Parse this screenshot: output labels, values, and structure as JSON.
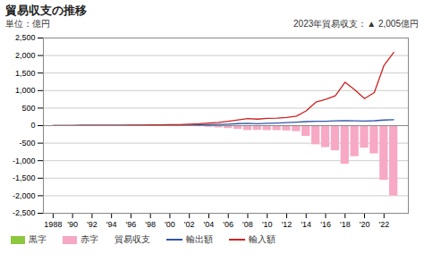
{
  "chart_data": {
    "type": "bar",
    "title": "貿易収支の推移",
    "ylabel": "単位：億円",
    "annotation": "2023年貿易収支：▲ 2,005億円",
    "x": [
      1988,
      1989,
      1990,
      1991,
      1992,
      1993,
      1994,
      1995,
      1996,
      1997,
      1998,
      1999,
      2000,
      2001,
      2002,
      2003,
      2004,
      2005,
      2006,
      2007,
      2008,
      2009,
      2010,
      2011,
      2012,
      2013,
      2014,
      2015,
      2016,
      2017,
      2018,
      2019,
      2020,
      2021,
      2022,
      2023
    ],
    "series": [
      {
        "name": "貿易収支",
        "type": "bar",
        "values": [
          0,
          0,
          0,
          0,
          0,
          -1,
          -2,
          -3,
          -3,
          -5,
          -6,
          -8,
          -11,
          -15,
          -21,
          -30,
          -45,
          -60,
          -81,
          -105,
          -137,
          -133,
          -140,
          -140,
          -150,
          -170,
          -305,
          -545,
          -625,
          -715,
          -1100,
          -885,
          -640,
          -805,
          -1560,
          -2005
        ],
        "colors": [
          "#8dc63f",
          "#8dc63f",
          "#8dc63f",
          "#8dc63f",
          "#8dc63f",
          "#f7a8c4",
          "#f7a8c4",
          "#f7a8c4",
          "#f7a8c4",
          "#f7a8c4",
          "#f7a8c4",
          "#f7a8c4",
          "#f7a8c4",
          "#f7a8c4",
          "#f7a8c4",
          "#f7a8c4",
          "#f7a8c4",
          "#f7a8c4",
          "#f7a8c4",
          "#f7a8c4",
          "#f7a8c4",
          "#f7a8c4",
          "#f7a8c4",
          "#f7a8c4",
          "#f7a8c4",
          "#f7a8c4",
          "#f7a8c4",
          "#f7a8c4",
          "#f7a8c4",
          "#f7a8c4",
          "#f7a8c4",
          "#f7a8c4",
          "#f7a8c4",
          "#f7a8c4",
          "#f7a8c4",
          "#f7a8c4"
        ]
      },
      {
        "name": "輸出額",
        "type": "line",
        "color": "#3355aa",
        "values": [
          3,
          4,
          5,
          6,
          7,
          7,
          8,
          9,
          11,
          12,
          13,
          13,
          16,
          16,
          18,
          22,
          27,
          33,
          44,
          57,
          65,
          52,
          65,
          75,
          85,
          100,
          115,
          125,
          125,
          135,
          140,
          135,
          130,
          140,
          160,
          170
        ]
      },
      {
        "name": "輸入額",
        "type": "line",
        "color": "#cc2222",
        "values": [
          3,
          4,
          5,
          6,
          7,
          8,
          10,
          12,
          14,
          17,
          19,
          21,
          27,
          31,
          39,
          52,
          72,
          93,
          125,
          162,
          202,
          185,
          205,
          215,
          235,
          270,
          420,
          670,
          750,
          850,
          1240,
          1020,
          770,
          945,
          1720,
          2090
        ]
      }
    ],
    "legend_entries": [
      {
        "name": "黒字",
        "color": "#8dc63f"
      },
      {
        "name": "赤字",
        "color": "#f7a8c4"
      }
    ],
    "xlim": [
      1987.0,
      2024.5
    ],
    "xticks": [
      1988,
      {
        "value": 1990,
        "label": "'90"
      },
      {
        "value": 1992,
        "label": "'92"
      },
      {
        "value": 1994,
        "label": "'94"
      },
      {
        "value": 1996,
        "label": "'96"
      },
      {
        "value": 1998,
        "label": "'98"
      },
      {
        "value": 2000,
        "label": "'00"
      },
      {
        "value": 2002,
        "label": "'02"
      },
      {
        "value": 2004,
        "label": "'04"
      },
      {
        "value": 2006,
        "label": "'06"
      },
      {
        "value": 2008,
        "label": "'08"
      },
      {
        "value": 2010,
        "label": "'10"
      },
      {
        "value": 2012,
        "label": "'12"
      },
      {
        "value": 2014,
        "label": "'14"
      },
      {
        "value": 2016,
        "label": "'16"
      },
      {
        "value": 2018,
        "label": "'18"
      },
      {
        "value": 2020,
        "label": "'20"
      },
      {
        "value": 2022,
        "label": "'22"
      }
    ],
    "ylim": [
      -2500,
      2500
    ],
    "yticks": [
      {
        "value": -2500,
        "label": "-2,500"
      },
      {
        "value": -2000,
        "label": "-2,000"
      },
      {
        "value": -1500,
        "label": "-1,500"
      },
      {
        "value": -1000,
        "label": "-1,000"
      },
      -500,
      0,
      500,
      {
        "value": 1000,
        "label": "1,000"
      },
      {
        "value": 1500,
        "label": "1,500"
      },
      {
        "value": 2000,
        "label": "2,000"
      },
      {
        "value": 2500,
        "label": "2,500"
      }
    ],
    "grid": true,
    "legend": "bottom",
    "background_color": "#ffffff"
  }
}
